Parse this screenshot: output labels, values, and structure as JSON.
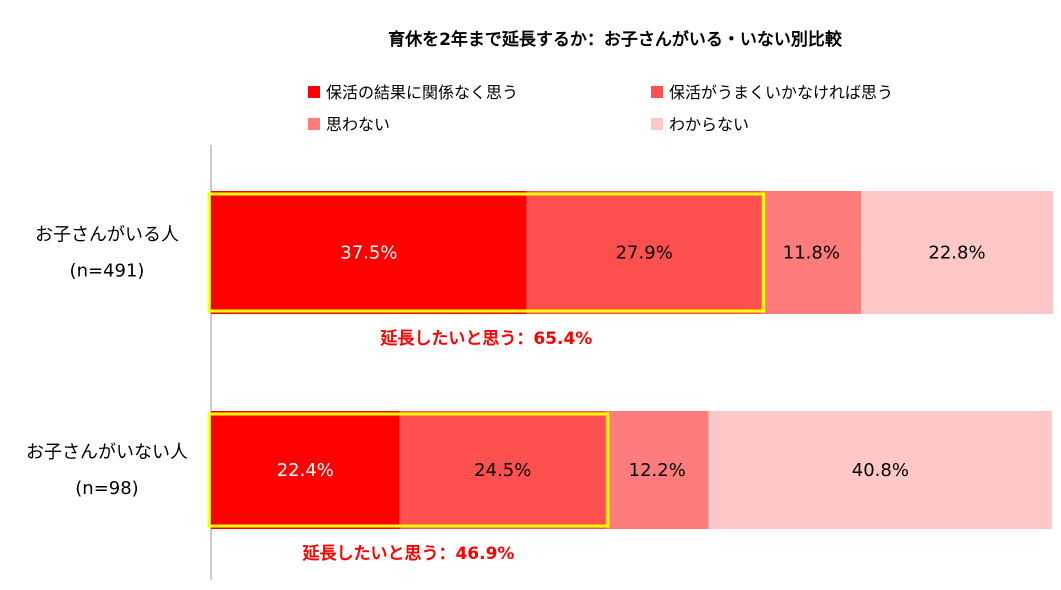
{
  "chart_data": {
    "type": "bar",
    "orientation": "horizontal",
    "stacked": "percent",
    "title": "育休を2年まで延長するか：お子さんがいる・いない別比較",
    "categories": [
      {
        "name": "お子さんがいる人",
        "n": "(n=491)"
      },
      {
        "name": "お子さんがいない人",
        "n": "(n=98)"
      }
    ],
    "series": [
      {
        "name": "保活の結果に関係なく思う",
        "color": "#ff0000",
        "label_color": "#ffffff",
        "values": [
          37.5,
          22.4
        ],
        "labels": [
          "37.5%",
          "22.4%"
        ]
      },
      {
        "name": "保活がうまくいかなければ思う",
        "color": "#ff5050",
        "label_color": "#000000",
        "values": [
          27.9,
          24.5
        ],
        "labels": [
          "27.9%",
          "24.5%"
        ]
      },
      {
        "name": "思わない",
        "color": "#ff7c7c",
        "label_color": "#000000",
        "values": [
          11.8,
          12.2
        ],
        "labels": [
          "11.8%",
          "12.2%"
        ]
      },
      {
        "name": "わからない",
        "color": "#ffc8c8",
        "label_color": "#000000",
        "values": [
          22.8,
          40.8
        ],
        "labels": [
          "22.8%",
          "40.8%"
        ]
      }
    ],
    "annotations": [
      "延長したいと思う：65.4%",
      "延長したいと思う：46.9%"
    ],
    "annotation_color": "#ff0000",
    "highlight_color": "#ffff00",
    "legend_position": "top",
    "grid": false
  }
}
